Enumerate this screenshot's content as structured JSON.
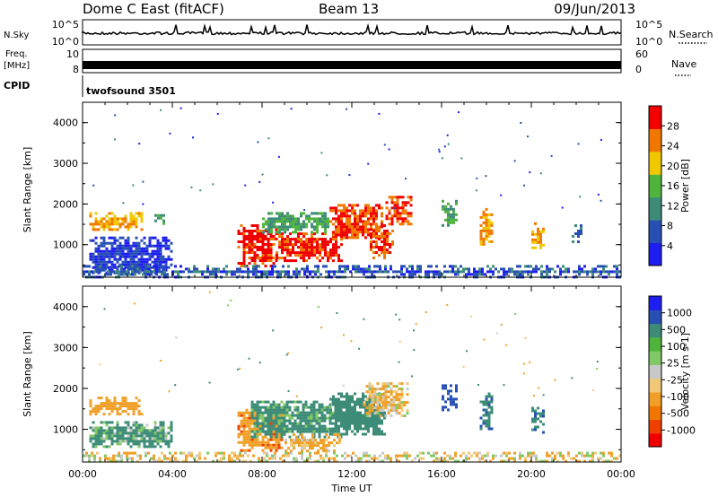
{
  "header": {
    "station": "Dome C East (fitACF)",
    "beam": "Beam 13",
    "date": "09/Jun/2013"
  },
  "top_panels": {
    "nsky_label": "N.Sky",
    "nsky_tick_hi": "10^5",
    "nsky_tick_lo": "10^0",
    "nsearch_label": "N.Search",
    "nsearch_tick_hi": "10^5",
    "nsearch_tick_lo": "10^0",
    "freq_label_1": "Freq.",
    "freq_label_2": "[MHz]",
    "freq_tick_hi": "10",
    "freq_tick_lo": "8",
    "nave_label": "Nave",
    "nave_tick_hi": "60",
    "nave_tick_lo": "0",
    "cpid_label": "CPID",
    "cpid_value": "twofsound 3501"
  },
  "chart_data": [
    {
      "type": "heatmap",
      "title": "",
      "xlabel": "",
      "ylabel": "Slant Range [km]",
      "ylim": [
        200,
        4500
      ],
      "yticks": [
        "1000",
        "2000",
        "3000",
        "4000"
      ],
      "colorbar_label": "Power [dB]",
      "colorbar_ticks": [
        "4",
        "8",
        "12",
        "16",
        "20",
        "24",
        "28"
      ],
      "colors": [
        "#1e1ef0",
        "#2850b4",
        "#3c8c78",
        "#50b43c",
        "#f0c800",
        "#f07800",
        "#f00000"
      ],
      "patches": [
        {
          "t0": 0.3,
          "t1": 2.6,
          "r0": 1350,
          "r1": 1800,
          "level": 22
        },
        {
          "t0": 0.3,
          "t1": 4.0,
          "r0": 300,
          "r1": 1200,
          "level": 6
        },
        {
          "t0": 3.2,
          "t1": 3.6,
          "r0": 1550,
          "r1": 1750,
          "level": 14
        },
        {
          "t0": 6.9,
          "t1": 8.6,
          "r0": 500,
          "r1": 1500,
          "level": 28
        },
        {
          "t0": 8.6,
          "t1": 11.5,
          "r0": 600,
          "r1": 1300,
          "level": 28
        },
        {
          "t0": 8.0,
          "t1": 11.0,
          "r0": 1300,
          "r1": 1800,
          "level": 14
        },
        {
          "t0": 11.0,
          "t1": 13.3,
          "r0": 1200,
          "r1": 2000,
          "level": 26
        },
        {
          "t0": 12.8,
          "t1": 13.8,
          "r0": 650,
          "r1": 1500,
          "level": 26
        },
        {
          "t0": 13.5,
          "t1": 14.6,
          "r0": 1500,
          "r1": 2200,
          "level": 26
        },
        {
          "t0": 16.0,
          "t1": 16.7,
          "r0": 1500,
          "r1": 2100,
          "level": 14
        },
        {
          "t0": 17.7,
          "t1": 18.3,
          "r0": 1000,
          "r1": 1900,
          "level": 22
        },
        {
          "t0": 20.0,
          "t1": 20.6,
          "r0": 900,
          "r1": 1550,
          "level": 22
        },
        {
          "t0": 21.8,
          "t1": 22.2,
          "r0": 1100,
          "r1": 1500,
          "level": 10
        },
        {
          "t0": 0.0,
          "t1": 24.0,
          "r0": 220,
          "r1": 500,
          "level": 8
        }
      ]
    },
    {
      "type": "heatmap",
      "title": "",
      "xlabel": "Time UT",
      "ylabel": "Slant Range [km]",
      "ylim": [
        200,
        4500
      ],
      "xticks": [
        "00:00",
        "04:00",
        "08:00",
        "12:00",
        "16:00",
        "20:00",
        "00:00"
      ],
      "yticks": [
        "1000",
        "2000",
        "3000",
        "4000"
      ],
      "colorbar_label": "Velocity [m s-1]",
      "colorbar_ticks": [
        "-1000",
        "-500",
        "-100",
        "-25",
        "25",
        "100",
        "500",
        "1000"
      ],
      "colors": [
        "#f00000",
        "#f04000",
        "#f07800",
        "#f0a028",
        "#f0c878",
        "#c8c8c8",
        "#82c864",
        "#50b43c",
        "#3c8c78",
        "#2850b4",
        "#1e1ef0"
      ],
      "patches": [
        {
          "t0": 0.3,
          "t1": 2.6,
          "r0": 1350,
          "r1": 1800,
          "level": -300
        },
        {
          "t0": 0.3,
          "t1": 4.0,
          "r0": 600,
          "r1": 1200,
          "level": 150
        },
        {
          "t0": 6.9,
          "t1": 9.0,
          "r0": 500,
          "r1": 1500,
          "level": -400
        },
        {
          "t0": 7.5,
          "t1": 11.5,
          "r0": 800,
          "r1": 1700,
          "level": 200
        },
        {
          "t0": 9.0,
          "t1": 11.5,
          "r0": 500,
          "r1": 900,
          "level": -150
        },
        {
          "t0": 11.0,
          "t1": 13.5,
          "r0": 900,
          "r1": 1900,
          "level": 300
        },
        {
          "t0": 12.5,
          "t1": 14.5,
          "r0": 1300,
          "r1": 2150,
          "level": -100
        },
        {
          "t0": 16.0,
          "t1": 16.7,
          "r0": 1500,
          "r1": 2100,
          "level": 700
        },
        {
          "t0": 17.7,
          "t1": 18.3,
          "r0": 1000,
          "r1": 1900,
          "level": 400
        },
        {
          "t0": 20.0,
          "t1": 20.6,
          "r0": 900,
          "r1": 1550,
          "level": 500
        },
        {
          "t0": 0.0,
          "t1": 24.0,
          "r0": 220,
          "r1": 450,
          "level": -50
        }
      ]
    }
  ]
}
